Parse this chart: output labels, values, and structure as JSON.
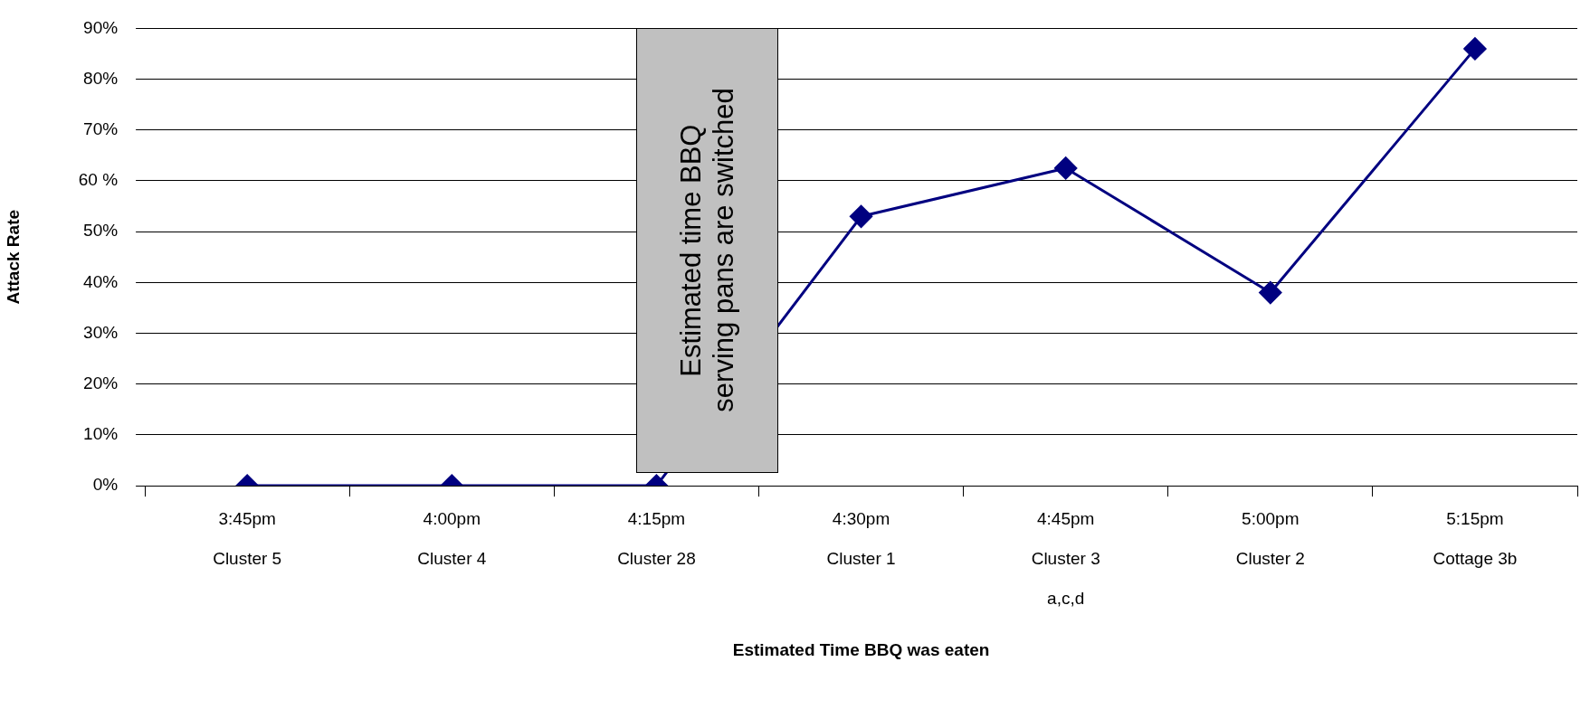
{
  "chart_data": {
    "type": "line",
    "xlabel": "Estimated Time BBQ was eaten",
    "ylabel": "Attack Rate",
    "categories": [
      "3:45pm\nCluster 5",
      "4:00pm\nCluster 4",
      "4:15pm\nCluster 28",
      "4:30pm\nCluster 1",
      "4:45pm\nCluster 3\na,c,d",
      "5:00pm\nCluster 2",
      "5:15pm\nCottage 3b"
    ],
    "series": [
      {
        "color": "#000080",
        "values": [
          0,
          0,
          0,
          53,
          62.5,
          38,
          86
        ]
      }
    ],
    "ylim": [
      0,
      90
    ],
    "yticks": [
      {
        "value": 0,
        "label": "0%"
      },
      {
        "value": 10,
        "label": "10%"
      },
      {
        "value": 20,
        "label": "20%"
      },
      {
        "value": 30,
        "label": "30%"
      },
      {
        "value": 40,
        "label": "40%"
      },
      {
        "value": 50,
        "label": "50%"
      },
      {
        "value": 60,
        "label": "60 %"
      },
      {
        "value": 70,
        "label": "70%"
      },
      {
        "value": 80,
        "label": "80%"
      },
      {
        "value": 90,
        "label": "90%"
      }
    ],
    "grid": "y",
    "legend": false,
    "marker": "diamond",
    "line_style": "solid",
    "annotations": [
      "Estimated time BBQ serving pans are switched"
    ]
  }
}
